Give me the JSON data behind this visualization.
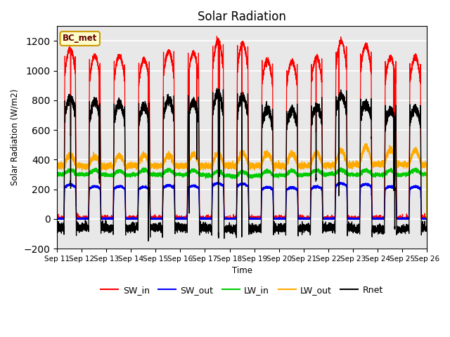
{
  "title": "Solar Radiation",
  "ylabel": "Solar Radiation (W/m2)",
  "xlabel": "Time",
  "ylim": [
    -200,
    1300
  ],
  "yticks": [
    -200,
    0,
    200,
    400,
    600,
    800,
    1000,
    1200
  ],
  "xlim": [
    0,
    15
  ],
  "xtick_labels": [
    "Sep 11",
    "Sep 12",
    "Sep 13",
    "Sep 14",
    "Sep 15",
    "Sep 16",
    "Sep 17",
    "Sep 18",
    "Sep 19",
    "Sep 20",
    "Sep 21",
    "Sep 22",
    "Sep 23",
    "Sep 24",
    "Sep 25",
    "Sep 26"
  ],
  "station_label": "BC_met",
  "colors": {
    "SW_in": "#ff0000",
    "SW_out": "#0000ff",
    "LW_in": "#00cc00",
    "LW_out": "#ffaa00",
    "Rnet": "#000000"
  },
  "panel_bg": "#e8e8e8",
  "sw_in_peaks": [
    1150,
    1100,
    1100,
    1075,
    1130,
    1120,
    1200,
    1185,
    1070,
    1060,
    1090,
    1200,
    1170,
    1090,
    1090
  ],
  "lw_in_base": [
    300,
    300,
    295,
    300,
    300,
    298,
    292,
    288,
    292,
    295,
    300,
    302,
    298,
    296,
    302
  ],
  "lw_out_day": [
    430,
    420,
    425,
    430,
    430,
    435,
    440,
    445,
    440,
    440,
    445,
    460,
    490,
    470,
    460
  ],
  "lw_out_night": [
    360,
    355,
    358,
    360,
    358,
    358,
    358,
    358,
    358,
    358,
    360,
    362,
    368,
    370,
    365
  ],
  "sw_out_ratio": 0.2
}
